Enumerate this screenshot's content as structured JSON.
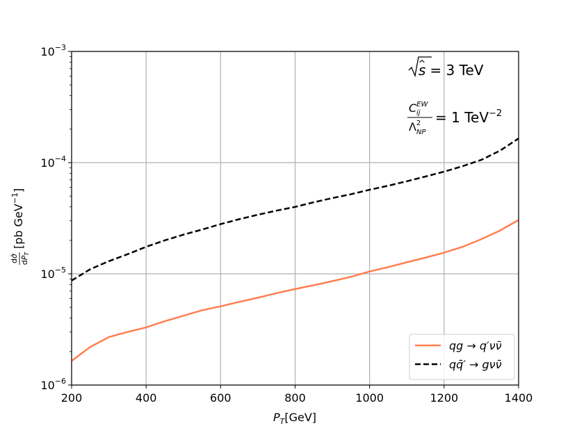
{
  "chart_data": {
    "type": "line",
    "xlabel_symbol": "P",
    "xlabel_sub": "T",
    "xlabel_unit": "[GeV]",
    "ylabel_unit": "[pb GeV",
    "ylabel_exp": "−1",
    "ylabel_close": "]",
    "xlim": [
      200,
      1400
    ],
    "ylim": [
      1e-06,
      0.001
    ],
    "yscale": "log",
    "grid": true,
    "legend_position": "lower-right",
    "x_ticks": [
      "200",
      "400",
      "600",
      "800",
      "1000",
      "1200",
      "1400"
    ],
    "y_ticks": [
      {
        "base": "10",
        "exp": "−3",
        "value": 0.001
      },
      {
        "base": "10",
        "exp": "−4",
        "value": 0.0001
      },
      {
        "base": "10",
        "exp": "−5",
        "value": 1e-05
      },
      {
        "base": "10",
        "exp": "−6",
        "value": 1e-06
      }
    ],
    "x": [
      200,
      250,
      300,
      350,
      400,
      450,
      500,
      550,
      600,
      650,
      700,
      750,
      800,
      850,
      900,
      950,
      1000,
      1050,
      1100,
      1150,
      1200,
      1250,
      1300,
      1350,
      1400
    ],
    "series": [
      {
        "name": "qg → q′νν̄",
        "color": "#ff7f50",
        "dash": "solid",
        "values": [
          1.65e-06,
          2.2e-06,
          2.7e-06,
          3e-06,
          3.3e-06,
          3.75e-06,
          4.2e-06,
          4.7e-06,
          5.1e-06,
          5.6e-06,
          6.1e-06,
          6.7e-06,
          7.3e-06,
          7.9e-06,
          8.6e-06,
          9.4e-06,
          1.05e-05,
          1.15e-05,
          1.27e-05,
          1.4e-05,
          1.55e-05,
          1.75e-05,
          2.05e-05,
          2.45e-05,
          3.05e-05
        ]
      },
      {
        "name": "qq̄′ → gνν̄",
        "color": "#000000",
        "dash": "dashed",
        "values": [
          8.7e-06,
          1.1e-05,
          1.3e-05,
          1.5e-05,
          1.75e-05,
          2e-05,
          2.25e-05,
          2.5e-05,
          2.8e-05,
          3.1e-05,
          3.4e-05,
          3.7e-05,
          4e-05,
          4.4e-05,
          4.8e-05,
          5.2e-05,
          5.7e-05,
          6.2e-05,
          6.8e-05,
          7.5e-05,
          8.3e-05,
          9.3e-05,
          0.000106,
          0.000128,
          0.000165
        ]
      }
    ],
    "annotations": {
      "line1_lhs": "s",
      "line1_rhs": "= 3 TeV",
      "line2_num": "C",
      "line2_num_sup": "EW",
      "line2_num_sub": "ij",
      "line2_den": "Λ",
      "line2_den_sup": "2",
      "line2_den_sub": "NP",
      "line2_rhs": "= 1 TeV",
      "line2_rhs_exp": "−2"
    }
  }
}
